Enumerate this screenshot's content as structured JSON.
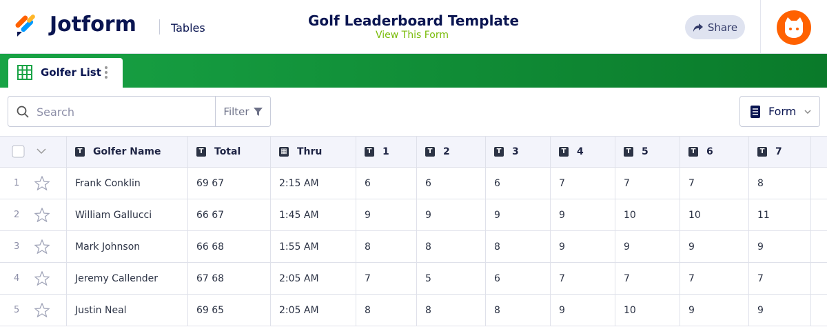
{
  "header": {
    "brand": "Jotform",
    "section": "Tables",
    "title": "Golf Leaderboard Template",
    "link": "View This Form",
    "share": "Share"
  },
  "tab": {
    "label": "Golfer List"
  },
  "toolbar": {
    "search": "Search",
    "filter": "Filter",
    "view": "Form"
  },
  "table": {
    "columns": [
      "Golfer Name",
      "Total",
      "Thru",
      "1",
      "2",
      "3",
      "4",
      "5",
      "6",
      "7"
    ],
    "rows": [
      {
        "number": "1",
        "cells": [
          "Frank Conklin",
          "69 67",
          "2:15 AM",
          "6",
          "6",
          "6",
          "7",
          "7",
          "7",
          "8"
        ]
      },
      {
        "number": "2",
        "cells": [
          "William Gallucci",
          "66 67",
          "1:45 AM",
          "9",
          "9",
          "9",
          "9",
          "10",
          "10",
          "11"
        ]
      },
      {
        "number": "3",
        "cells": [
          "Mark Johnson",
          "66 68",
          "1:55 AM",
          "8",
          "8",
          "8",
          "9",
          "9",
          "9",
          "9"
        ]
      },
      {
        "number": "4",
        "cells": [
          "Jeremy Callender",
          "67 68",
          "2:05 AM",
          "7",
          "5",
          "6",
          "7",
          "7",
          "7",
          "7"
        ]
      },
      {
        "number": "5",
        "cells": [
          "Justin Neal",
          "69 65",
          "2:05 AM",
          "8",
          "8",
          "8",
          "9",
          "10",
          "9",
          "9"
        ]
      }
    ]
  }
}
